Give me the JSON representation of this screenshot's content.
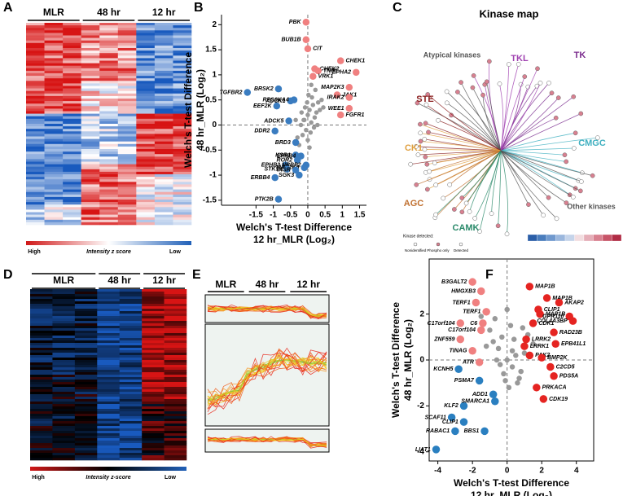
{
  "chart_data": [
    {
      "type": "heatmap",
      "panel": "A",
      "columns": [
        "MLR",
        "48 hr",
        "12 hr"
      ],
      "legend_labels": [
        "High",
        "Intensity z score",
        "Low"
      ]
    },
    {
      "type": "scatter",
      "panel": "B",
      "frame": false,
      "x_label": [
        "Welch's T-test Difference",
        "12 hr_MLR (Log₂)"
      ],
      "y_label": [
        "Welch's T-test Difference",
        "48 hr_MLR (Log₂)"
      ],
      "xlim": [
        -2.5,
        1.7
      ],
      "xticks": [
        -1.5,
        -1,
        -0.5,
        0,
        0.5,
        1,
        1.5
      ],
      "ylim": [
        -1.6,
        2.2
      ],
      "yticks": [
        -1.5,
        -1,
        -0.5,
        0,
        0.5,
        1,
        1.5,
        2
      ],
      "series": [
        {
          "color": "#999999",
          "x": [
            -0.1,
            0.0,
            0.05,
            -0.05,
            0.1,
            -0.15,
            0.15,
            0.2,
            -0.2,
            0.0,
            0.08,
            -0.08,
            0.25,
            0.3,
            -0.25,
            0.12,
            -0.12,
            0.02,
            0.18,
            -0.3,
            0.35,
            0.05,
            -0.02,
            0.22,
            0.4,
            -0.18,
            0.1,
            0.45,
            -0.35,
            0.28
          ],
          "values": [
            0.1,
            0.2,
            0.3,
            -0.1,
            0.05,
            -0.2,
            0.4,
            0.15,
            0.0,
            -0.3,
            -0.15,
            0.35,
            0.25,
            0.45,
            -0.4,
            0.55,
            0.1,
            0.6,
            -0.05,
            -0.25,
            0.3,
            -0.45,
            0.45,
            0.7,
            0.5,
            0.25,
            0.8,
            0.35,
            0.1,
            0.0
          ]
        },
        {
          "color": "#f08080",
          "x": [
            -0.05,
            -0.05,
            0.0,
            0.95,
            0.2,
            0.3,
            1.4,
            0.15,
            1.2,
            0.85,
            1.2,
            1.2,
            0.95
          ],
          "values": [
            2.05,
            1.7,
            1.52,
            1.28,
            1.12,
            1.08,
            1.05,
            0.97,
            0.75,
            0.6,
            0.55,
            0.33,
            0.2
          ],
          "labels": [
            "PBK",
            "BUB1B",
            "CIT",
            "CHEK1",
            "CHEK2",
            "TNIK",
            "EPHA2",
            "VRK1",
            "MAP2K3",
            "JAK1",
            "IRAK2",
            "WEE1",
            "FGFR1"
          ]
        },
        {
          "color": "#3a7cc0",
          "x": [
            -1.75,
            -0.85,
            -0.5,
            -0.4,
            -0.9,
            -0.55,
            -0.95,
            -0.35,
            -0.35,
            -0.2,
            -0.3,
            -0.65,
            -0.05,
            -0.1,
            -0.6,
            -0.35,
            -0.25,
            -0.95,
            -0.85
          ],
          "values": [
            0.65,
            0.72,
            0.48,
            0.5,
            0.38,
            0.08,
            -0.12,
            -0.35,
            -0.6,
            -0.62,
            -0.7,
            -0.8,
            -0.8,
            -0.85,
            -0.88,
            -0.9,
            -1.0,
            -1.05,
            -1.48
          ],
          "labels": [
            "TGFBR2",
            "BRSK2",
            "ADCK1",
            "RPS6KA4",
            "EEF2K",
            "ADCK5",
            "DDR2",
            "BRD3",
            "KSR1",
            "EPHB4",
            "ROR2",
            "EPHB3",
            "NRBP2",
            "MAP2K6",
            "STK19",
            "INSR",
            "SGK3",
            "ERBB4",
            "PTK2B"
          ]
        }
      ]
    },
    {
      "type": "heatmap",
      "panel": "D",
      "columns": [
        "MLR",
        "48 hr",
        "12 hr"
      ],
      "legend_labels": [
        "High",
        "Intensity z-score",
        "Low"
      ]
    },
    {
      "type": "profile",
      "panel": "E",
      "columns": [
        "MLR",
        "48 hr",
        "12 hr"
      ]
    },
    {
      "type": "scatter",
      "panel": "F",
      "frame": true,
      "x_label": [
        "Welch's T-test Difference",
        "12 hr_MLR (Log₂)"
      ],
      "y_label": [
        "Welch's T-test Difference",
        "48 hr_MLR (Log₂)"
      ],
      "xlim": [
        -4.5,
        5
      ],
      "xticks": [
        -4,
        -2,
        0,
        2,
        4
      ],
      "ylim": [
        -4.4,
        4.4
      ],
      "yticks": [
        -4,
        -2,
        0,
        2
      ],
      "series": [
        {
          "color": "#999999",
          "x": [
            -0.5,
            0,
            0.3,
            -0.3,
            0.5,
            -0.8,
            0.8,
            0.2,
            -0.2,
            1.0,
            -1.0,
            0.6,
            -0.6,
            0.1,
            0.4,
            -0.4,
            1.2,
            -1.2,
            0.7,
            -0.7,
            0.9,
            0.0,
            -0.1,
            0.3,
            1.5,
            -1.5
          ],
          "values": [
            0.5,
            0,
            -0.3,
            1.0,
            0.2,
            0.8,
            -0.5,
            1.5,
            -0.6,
            0.3,
            1.3,
            -1.0,
            0.0,
            -1.2,
            0.9,
            -0.2,
            1.1,
            0.6,
            -0.8,
            1.8,
            1.4,
            2.2,
            -0.9,
            0.4,
            0.7,
            1.9
          ]
        },
        {
          "color": "#f08080",
          "x": [
            -2.0,
            -1.5,
            -1.8,
            -1.2,
            -1.4,
            -2.7,
            -1.5,
            -2.7,
            -2.0,
            -1.6
          ],
          "values": [
            3.4,
            3.0,
            2.5,
            2.1,
            1.6,
            1.6,
            1.3,
            0.9,
            0.4,
            -0.1
          ],
          "labels": [
            "B3GALT2",
            "HMGXB3",
            "TERF1",
            "TERF1",
            "C6",
            "C17orf104",
            "C17orf104",
            "ZNF559",
            "TINAG",
            "ATR"
          ]
        },
        {
          "color": "#e52421",
          "x": [
            1.3,
            2.3,
            3.0,
            1.8,
            1.9,
            3.6,
            3.8,
            1.5,
            2.7,
            1.1,
            1.0,
            2.8,
            1.3,
            2.0,
            2.5,
            2.7,
            1.7,
            2.1
          ],
          "values": [
            3.2,
            2.7,
            2.5,
            2.2,
            2.0,
            1.9,
            1.7,
            1.6,
            1.2,
            0.9,
            0.6,
            0.7,
            0.2,
            0.1,
            -0.3,
            -0.7,
            -1.2,
            -1.7
          ],
          "labels": [
            "MAP1B",
            "MAP1B",
            "AKAP2",
            "CLIP1",
            "MAP1B",
            "GPR110",
            "COL4A3BP",
            "CDK1",
            "RAD23B",
            "LRRK2",
            "LRRK1",
            "EPB41L1",
            "PAK2",
            "BMP2K",
            "C2CD5",
            "PDS5A",
            "PRKACA",
            "CDK19"
          ]
        },
        {
          "color": "#2a7fc0",
          "x": [
            -2.8,
            -1.6,
            -0.8,
            -2.5,
            -0.7,
            -3.2,
            -2.5,
            -3.0,
            -1.3,
            -4.1
          ],
          "values": [
            -0.4,
            -0.9,
            -1.5,
            -2.0,
            -1.8,
            -2.5,
            -2.7,
            -3.1,
            -3.1,
            -3.9
          ],
          "labels": [
            "KCNH5",
            "PSMA7",
            "ADD1",
            "KLF2",
            "SMARCA1",
            "SCAF11",
            "CLIP1",
            "RABAC1",
            "BBS1",
            "LIAT1"
          ]
        }
      ]
    }
  ],
  "kinase_map": {
    "panel": "C",
    "title": "Kinase map",
    "groups": [
      {
        "name": "TK",
        "color": "#7b2d8e"
      },
      {
        "name": "TKL",
        "color": "#a040b0"
      },
      {
        "name": "Atypical kinases",
        "color": "#555555"
      },
      {
        "name": "STE",
        "color": "#8b2020"
      },
      {
        "name": "CK1",
        "color": "#e0a040"
      },
      {
        "name": "AGC",
        "color": "#c07030"
      },
      {
        "name": "CAMK",
        "color": "#2a8a6a"
      },
      {
        "name": "CMGC",
        "color": "#40b0c0"
      },
      {
        "name": "Other kinases",
        "color": "#555555"
      }
    ],
    "legend_title": "Kinase detected:",
    "legend_items": [
      "Nonidentified",
      "Phospho only",
      "Detected"
    ]
  }
}
